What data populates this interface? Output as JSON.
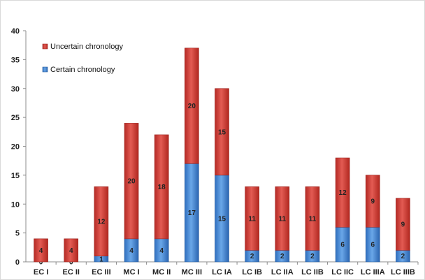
{
  "chart_data": {
    "type": "bar",
    "stacked": true,
    "categories": [
      "EC I",
      "EC II",
      "EC III",
      "MC I",
      "MC II",
      "MC III",
      "LC IA",
      "LC IB",
      "LC IIA",
      "LC IIB",
      "LC IIC",
      "LC IIIA",
      "LC IIIB"
    ],
    "series": [
      {
        "name": "Certain chronology",
        "color": "#4f8fd6",
        "values": [
          0,
          0,
          1,
          4,
          4,
          17,
          15,
          2,
          2,
          2,
          6,
          6,
          2
        ]
      },
      {
        "name": "Uncertain chronology",
        "color": "#d63b34",
        "values": [
          4,
          4,
          12,
          20,
          18,
          20,
          15,
          11,
          11,
          11,
          12,
          9,
          9
        ]
      }
    ],
    "ylim": [
      0,
      40
    ],
    "yticks": [
      0,
      5,
      10,
      15,
      20,
      25,
      30,
      35,
      40
    ],
    "grid": false,
    "legend": "top-left"
  }
}
